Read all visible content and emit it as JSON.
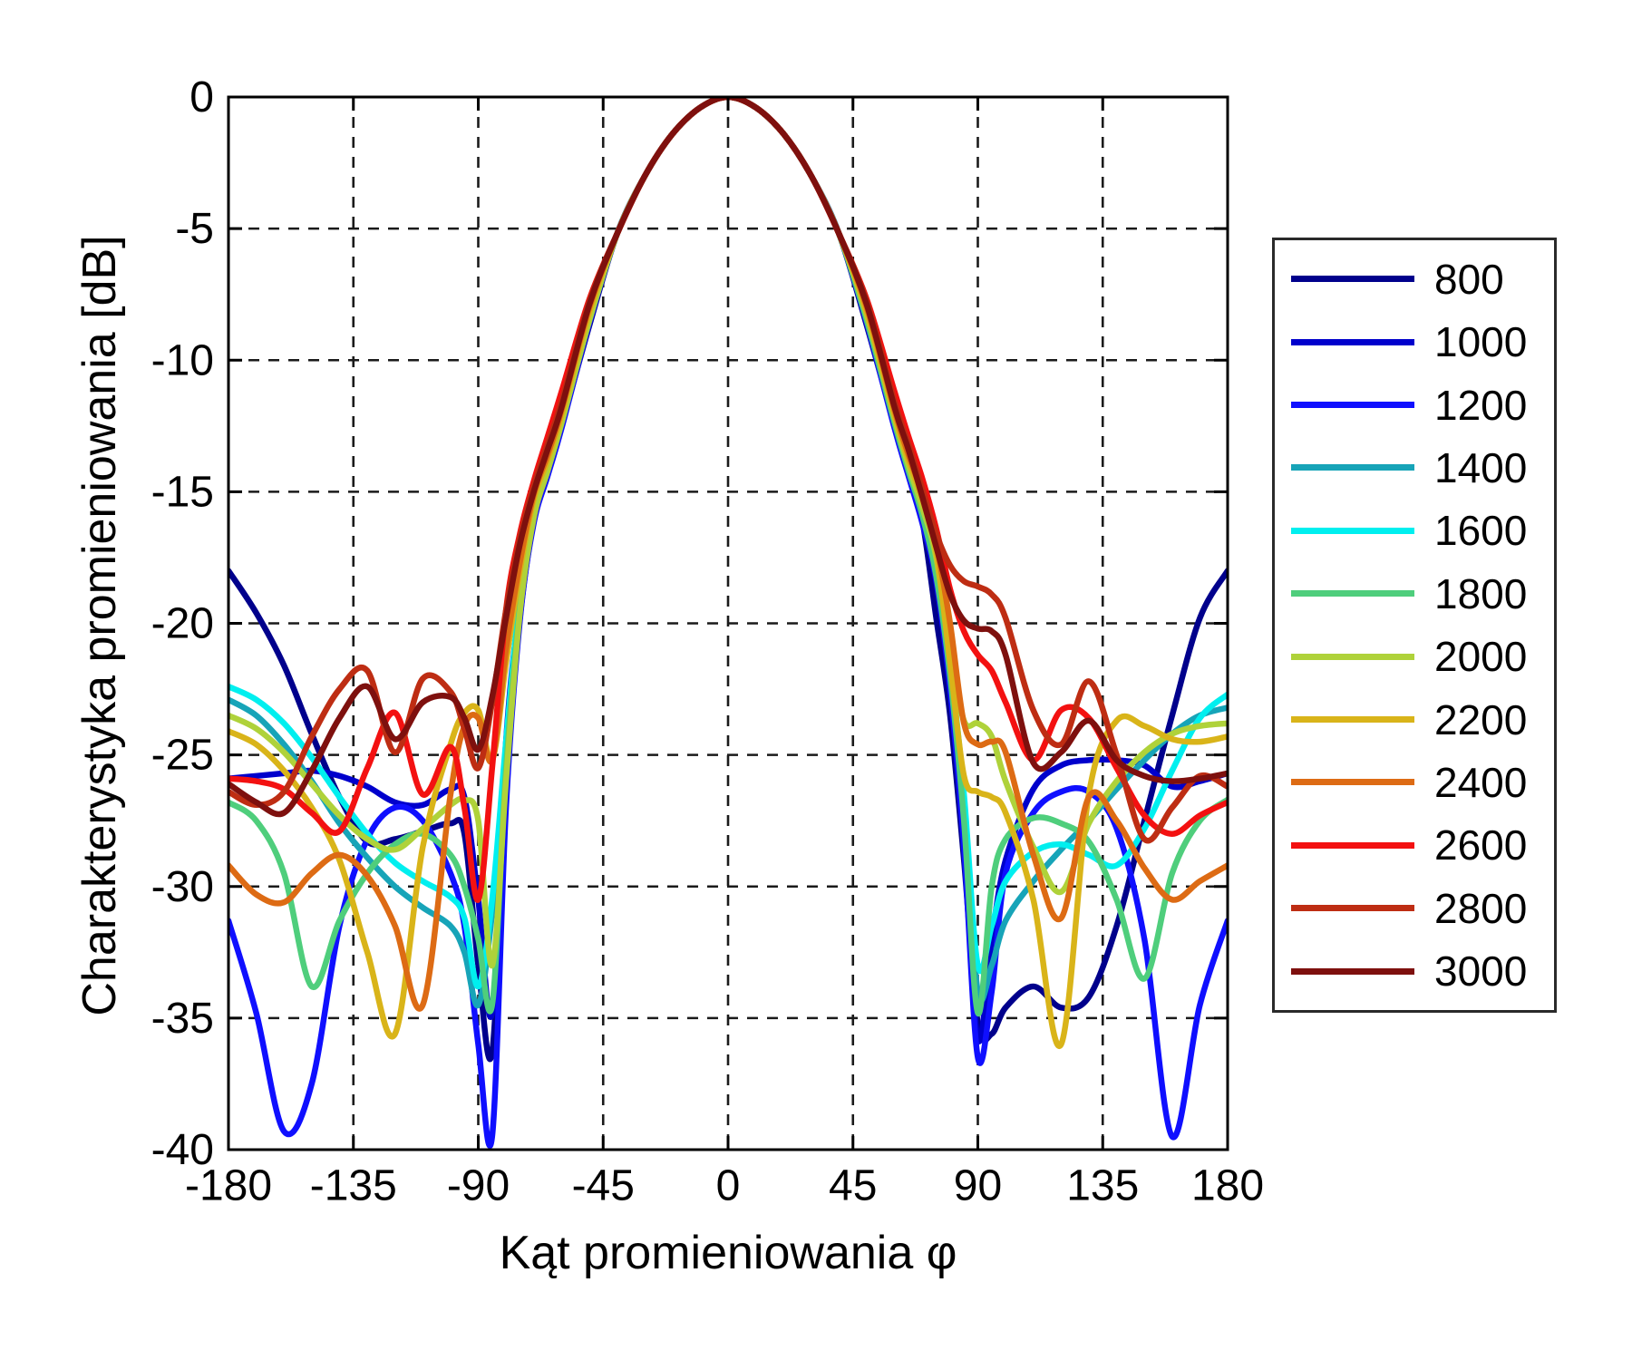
{
  "figure": {
    "background": "#ffffff"
  },
  "axes": {
    "xlabel": "Kąt promieniowania φ",
    "ylabel": "Charakterystyka promieniowania [dB]",
    "xlim": [
      -180,
      180
    ],
    "ylim": [
      -40,
      0
    ],
    "xticks": [
      -180,
      -135,
      -90,
      -45,
      0,
      45,
      90,
      135,
      180
    ],
    "yticks": [
      0,
      -5,
      -10,
      -15,
      -20,
      -25,
      -30,
      -35,
      -40
    ],
    "xticklabels": [
      "-180",
      "-135",
      "-90",
      "-45",
      "0",
      "45",
      "90",
      "135",
      "180"
    ],
    "yticklabels": [
      "0",
      "-5",
      "-10",
      "-15",
      "-20",
      "-25",
      "-30",
      "-35",
      "-40"
    ],
    "grid": true,
    "grid_style": "dashed",
    "border_color": "#000000",
    "tick_label_color": "#000000"
  },
  "legend": {
    "position": "outside-right",
    "border_color": "#2a2a2a",
    "labels": [
      "800",
      "1000",
      "1200",
      "1400",
      "1600",
      "1800",
      "2000",
      "2200",
      "2400",
      "2600",
      "2800",
      "3000"
    ]
  },
  "chart_data": {
    "type": "line",
    "title": "",
    "xlabel": "Kąt promieniowania φ",
    "ylabel": "Charakterystyka promieniowania [dB]",
    "xlim": [
      -180,
      180
    ],
    "ylim": [
      -40,
      0
    ],
    "grid": true,
    "legend_position": "outside-right",
    "line_width": 6.5,
    "x": [
      -180,
      -170,
      -160,
      -150,
      -140,
      -130,
      -120,
      -110,
      -100,
      -95,
      -90,
      -85,
      -80,
      -75,
      -70,
      -65,
      -60,
      -50,
      -40,
      -30,
      -20,
      -10,
      0,
      10,
      20,
      30,
      40,
      50,
      60,
      65,
      70,
      75,
      80,
      85,
      90,
      95,
      100,
      110,
      120,
      130,
      140,
      150,
      160,
      170,
      180
    ],
    "series": [
      {
        "name": "800",
        "color": "#00008C",
        "values": [
          -18.0,
          -19.6,
          -21.6,
          -24.2,
          -26.6,
          -28.3,
          -28.2,
          -27.9,
          -27.6,
          -28.0,
          -33.0,
          -36.3,
          -26.0,
          -19.8,
          -16.1,
          -14.3,
          -12.5,
          -8.7,
          -5.2,
          -3.0,
          -1.4,
          -0.4,
          0,
          -0.4,
          -1.4,
          -3.0,
          -5.2,
          -8.7,
          -12.5,
          -14.3,
          -16.1,
          -19.8,
          -23.5,
          -29.0,
          -35.2,
          -35.6,
          -34.6,
          -33.8,
          -34.6,
          -34.2,
          -31.5,
          -27.5,
          -23.5,
          -19.8,
          -18.0
        ]
      },
      {
        "name": "1000",
        "color": "#0000CC",
        "values": [
          -25.9,
          -25.8,
          -25.7,
          -25.6,
          -25.8,
          -26.2,
          -26.8,
          -26.9,
          -26.3,
          -26.6,
          -30.5,
          -34.8,
          -24.5,
          -19.3,
          -15.9,
          -14.2,
          -12.4,
          -8.6,
          -5.2,
          -3.0,
          -1.4,
          -0.4,
          0,
          -0.4,
          -1.4,
          -3.0,
          -5.2,
          -8.6,
          -12.4,
          -14.2,
          -15.9,
          -18.2,
          -22.0,
          -28.0,
          -35.8,
          -32.0,
          -29.0,
          -26.3,
          -25.4,
          -25.2,
          -25.2,
          -25.4,
          -26.2,
          -26.0,
          -25.7
        ]
      },
      {
        "name": "1200",
        "color": "#0F0FFF",
        "values": [
          -31.3,
          -34.8,
          -39.3,
          -37.5,
          -31.5,
          -28.2,
          -27.0,
          -27.5,
          -29.5,
          -31.5,
          -36.0,
          -39.5,
          -27.0,
          -19.9,
          -16.2,
          -14.4,
          -12.6,
          -8.6,
          -5.2,
          -3.0,
          -1.4,
          -0.4,
          0,
          -0.4,
          -1.4,
          -3.0,
          -5.2,
          -8.6,
          -12.6,
          -14.4,
          -16.2,
          -18.4,
          -22.5,
          -28.5,
          -36.5,
          -34.0,
          -29.5,
          -27.2,
          -26.4,
          -26.4,
          -27.8,
          -32.0,
          -39.5,
          -34.5,
          -31.3
        ]
      },
      {
        "name": "1400",
        "color": "#17A4B8",
        "values": [
          -22.9,
          -23.5,
          -24.6,
          -26.0,
          -27.6,
          -28.9,
          -30.0,
          -30.8,
          -31.5,
          -32.5,
          -34.5,
          -31.0,
          -24.8,
          -19.2,
          -15.8,
          -14.1,
          -12.3,
          -8.5,
          -5.2,
          -3.0,
          -1.4,
          -0.4,
          0,
          -0.4,
          -1.4,
          -3.0,
          -5.2,
          -8.5,
          -12.3,
          -14.1,
          -15.8,
          -18.1,
          -21.8,
          -27.0,
          -34.0,
          -33.0,
          -31.3,
          -29.8,
          -28.6,
          -27.5,
          -26.3,
          -25.2,
          -24.2,
          -23.5,
          -23.2
        ]
      },
      {
        "name": "1600",
        "color": "#00EFEF",
        "values": [
          -22.4,
          -22.9,
          -23.8,
          -25.1,
          -26.6,
          -28.0,
          -29.1,
          -29.8,
          -30.4,
          -31.2,
          -33.8,
          -30.5,
          -24.5,
          -19.0,
          -15.7,
          -14.0,
          -12.2,
          -8.4,
          -5.2,
          -3.0,
          -1.4,
          -0.4,
          0,
          -0.4,
          -1.4,
          -3.0,
          -5.2,
          -8.4,
          -12.2,
          -14.0,
          -15.7,
          -18.0,
          -21.5,
          -26.5,
          -33.0,
          -31.5,
          -29.8,
          -28.7,
          -28.4,
          -28.8,
          -29.2,
          -27.8,
          -25.6,
          -23.6,
          -22.7
        ]
      },
      {
        "name": "1800",
        "color": "#4FCE7C",
        "values": [
          -26.8,
          -27.5,
          -29.5,
          -33.8,
          -31.3,
          -29.5,
          -28.4,
          -28.0,
          -28.8,
          -30.0,
          -32.0,
          -34.5,
          -25.5,
          -19.4,
          -15.9,
          -14.2,
          -12.4,
          -8.5,
          -5.2,
          -3.0,
          -1.4,
          -0.4,
          0,
          -0.4,
          -1.4,
          -3.0,
          -5.2,
          -8.5,
          -12.4,
          -14.2,
          -15.9,
          -18.2,
          -22.0,
          -27.5,
          -34.8,
          -30.0,
          -28.2,
          -27.4,
          -27.6,
          -28.3,
          -30.5,
          -33.5,
          -29.5,
          -27.5,
          -26.7
        ]
      },
      {
        "name": "2000",
        "color": "#AFD23A",
        "values": [
          -23.5,
          -24.0,
          -24.9,
          -26.1,
          -27.3,
          -28.2,
          -28.6,
          -27.8,
          -26.9,
          -26.7,
          -27.5,
          -33.0,
          -26.0,
          -19.6,
          -16.0,
          -14.2,
          -12.4,
          -8.5,
          -5.2,
          -3.0,
          -1.4,
          -0.4,
          0,
          -0.4,
          -1.4,
          -3.0,
          -5.2,
          -8.3,
          -12.2,
          -14.0,
          -15.6,
          -17.5,
          -21.0,
          -23.7,
          -23.8,
          -24.3,
          -26.0,
          -28.5,
          -30.2,
          -27.6,
          -26.0,
          -24.9,
          -24.2,
          -23.9,
          -23.8
        ]
      },
      {
        "name": "2200",
        "color": "#D9B419",
        "values": [
          -24.1,
          -24.6,
          -25.6,
          -27.0,
          -29.0,
          -32.5,
          -35.6,
          -28.5,
          -24.6,
          -23.4,
          -23.3,
          -25.2,
          -21.5,
          -18.0,
          -15.3,
          -13.8,
          -12.1,
          -8.2,
          -5.2,
          -3.0,
          -1.4,
          -0.4,
          0,
          -0.4,
          -1.4,
          -3.0,
          -5.2,
          -8.2,
          -12.1,
          -13.8,
          -15.3,
          -17.3,
          -21.5,
          -25.8,
          -26.4,
          -26.6,
          -27.2,
          -30.5,
          -36.0,
          -26.5,
          -23.7,
          -23.9,
          -24.4,
          -24.5,
          -24.3
        ]
      },
      {
        "name": "2400",
        "color": "#DD6B14",
        "values": [
          -29.2,
          -30.3,
          -30.6,
          -29.5,
          -28.8,
          -29.6,
          -31.5,
          -34.5,
          -26.5,
          -23.9,
          -23.6,
          -25.2,
          -21.0,
          -17.7,
          -15.1,
          -13.6,
          -11.9,
          -8.0,
          -5.2,
          -3.0,
          -1.4,
          -0.4,
          0,
          -0.4,
          -1.4,
          -3.0,
          -5.2,
          -8.0,
          -11.9,
          -13.6,
          -15.1,
          -17.0,
          -20.0,
          -23.8,
          -24.6,
          -24.5,
          -24.9,
          -28.8,
          -31.2,
          -26.6,
          -27.5,
          -29.3,
          -30.5,
          -29.8,
          -29.2
        ]
      },
      {
        "name": "2600",
        "color": "#F31111",
        "values": [
          -25.9,
          -26.0,
          -26.3,
          -27.2,
          -27.9,
          -25.5,
          -23.4,
          -26.5,
          -24.7,
          -27.0,
          -30.5,
          -25.5,
          -19.5,
          -16.6,
          -14.6,
          -12.9,
          -11.2,
          -7.7,
          -5.2,
          -3.0,
          -1.4,
          -0.4,
          0,
          -0.4,
          -1.4,
          -3.0,
          -5.2,
          -7.7,
          -11.2,
          -12.9,
          -14.5,
          -16.4,
          -18.7,
          -20.3,
          -21.2,
          -21.8,
          -23.0,
          -25.2,
          -23.3,
          -23.6,
          -25.5,
          -27.3,
          -28.0,
          -27.3,
          -26.8
        ]
      },
      {
        "name": "2800",
        "color": "#BE2D13",
        "values": [
          -26.4,
          -26.9,
          -26.4,
          -24.3,
          -22.5,
          -21.8,
          -24.9,
          -22.1,
          -22.6,
          -24.0,
          -25.5,
          -23.0,
          -19.5,
          -16.8,
          -14.8,
          -13.2,
          -11.6,
          -7.8,
          -5.2,
          -3.0,
          -1.4,
          -0.4,
          0,
          -0.4,
          -1.4,
          -3.0,
          -5.2,
          -7.8,
          -11.6,
          -13.2,
          -14.9,
          -16.6,
          -17.8,
          -18.4,
          -18.6,
          -18.9,
          -19.8,
          -23.3,
          -24.6,
          -22.2,
          -25.0,
          -28.2,
          -27.0,
          -25.8,
          -26.2
        ]
      },
      {
        "name": "3000",
        "color": "#7E100E",
        "values": [
          -26.1,
          -26.8,
          -27.2,
          -25.6,
          -23.6,
          -22.4,
          -24.4,
          -23.0,
          -22.8,
          -23.6,
          -24.8,
          -22.8,
          -19.8,
          -17.0,
          -15.0,
          -13.4,
          -11.8,
          -7.9,
          -5.2,
          -3.0,
          -1.4,
          -0.4,
          0,
          -0.4,
          -1.4,
          -3.0,
          -5.2,
          -7.9,
          -11.8,
          -13.4,
          -15.2,
          -17.1,
          -18.9,
          -19.9,
          -20.2,
          -20.3,
          -21.2,
          -25.3,
          -24.9,
          -23.7,
          -25.2,
          -25.8,
          -26.0,
          -25.9,
          -25.7
        ]
      }
    ]
  }
}
